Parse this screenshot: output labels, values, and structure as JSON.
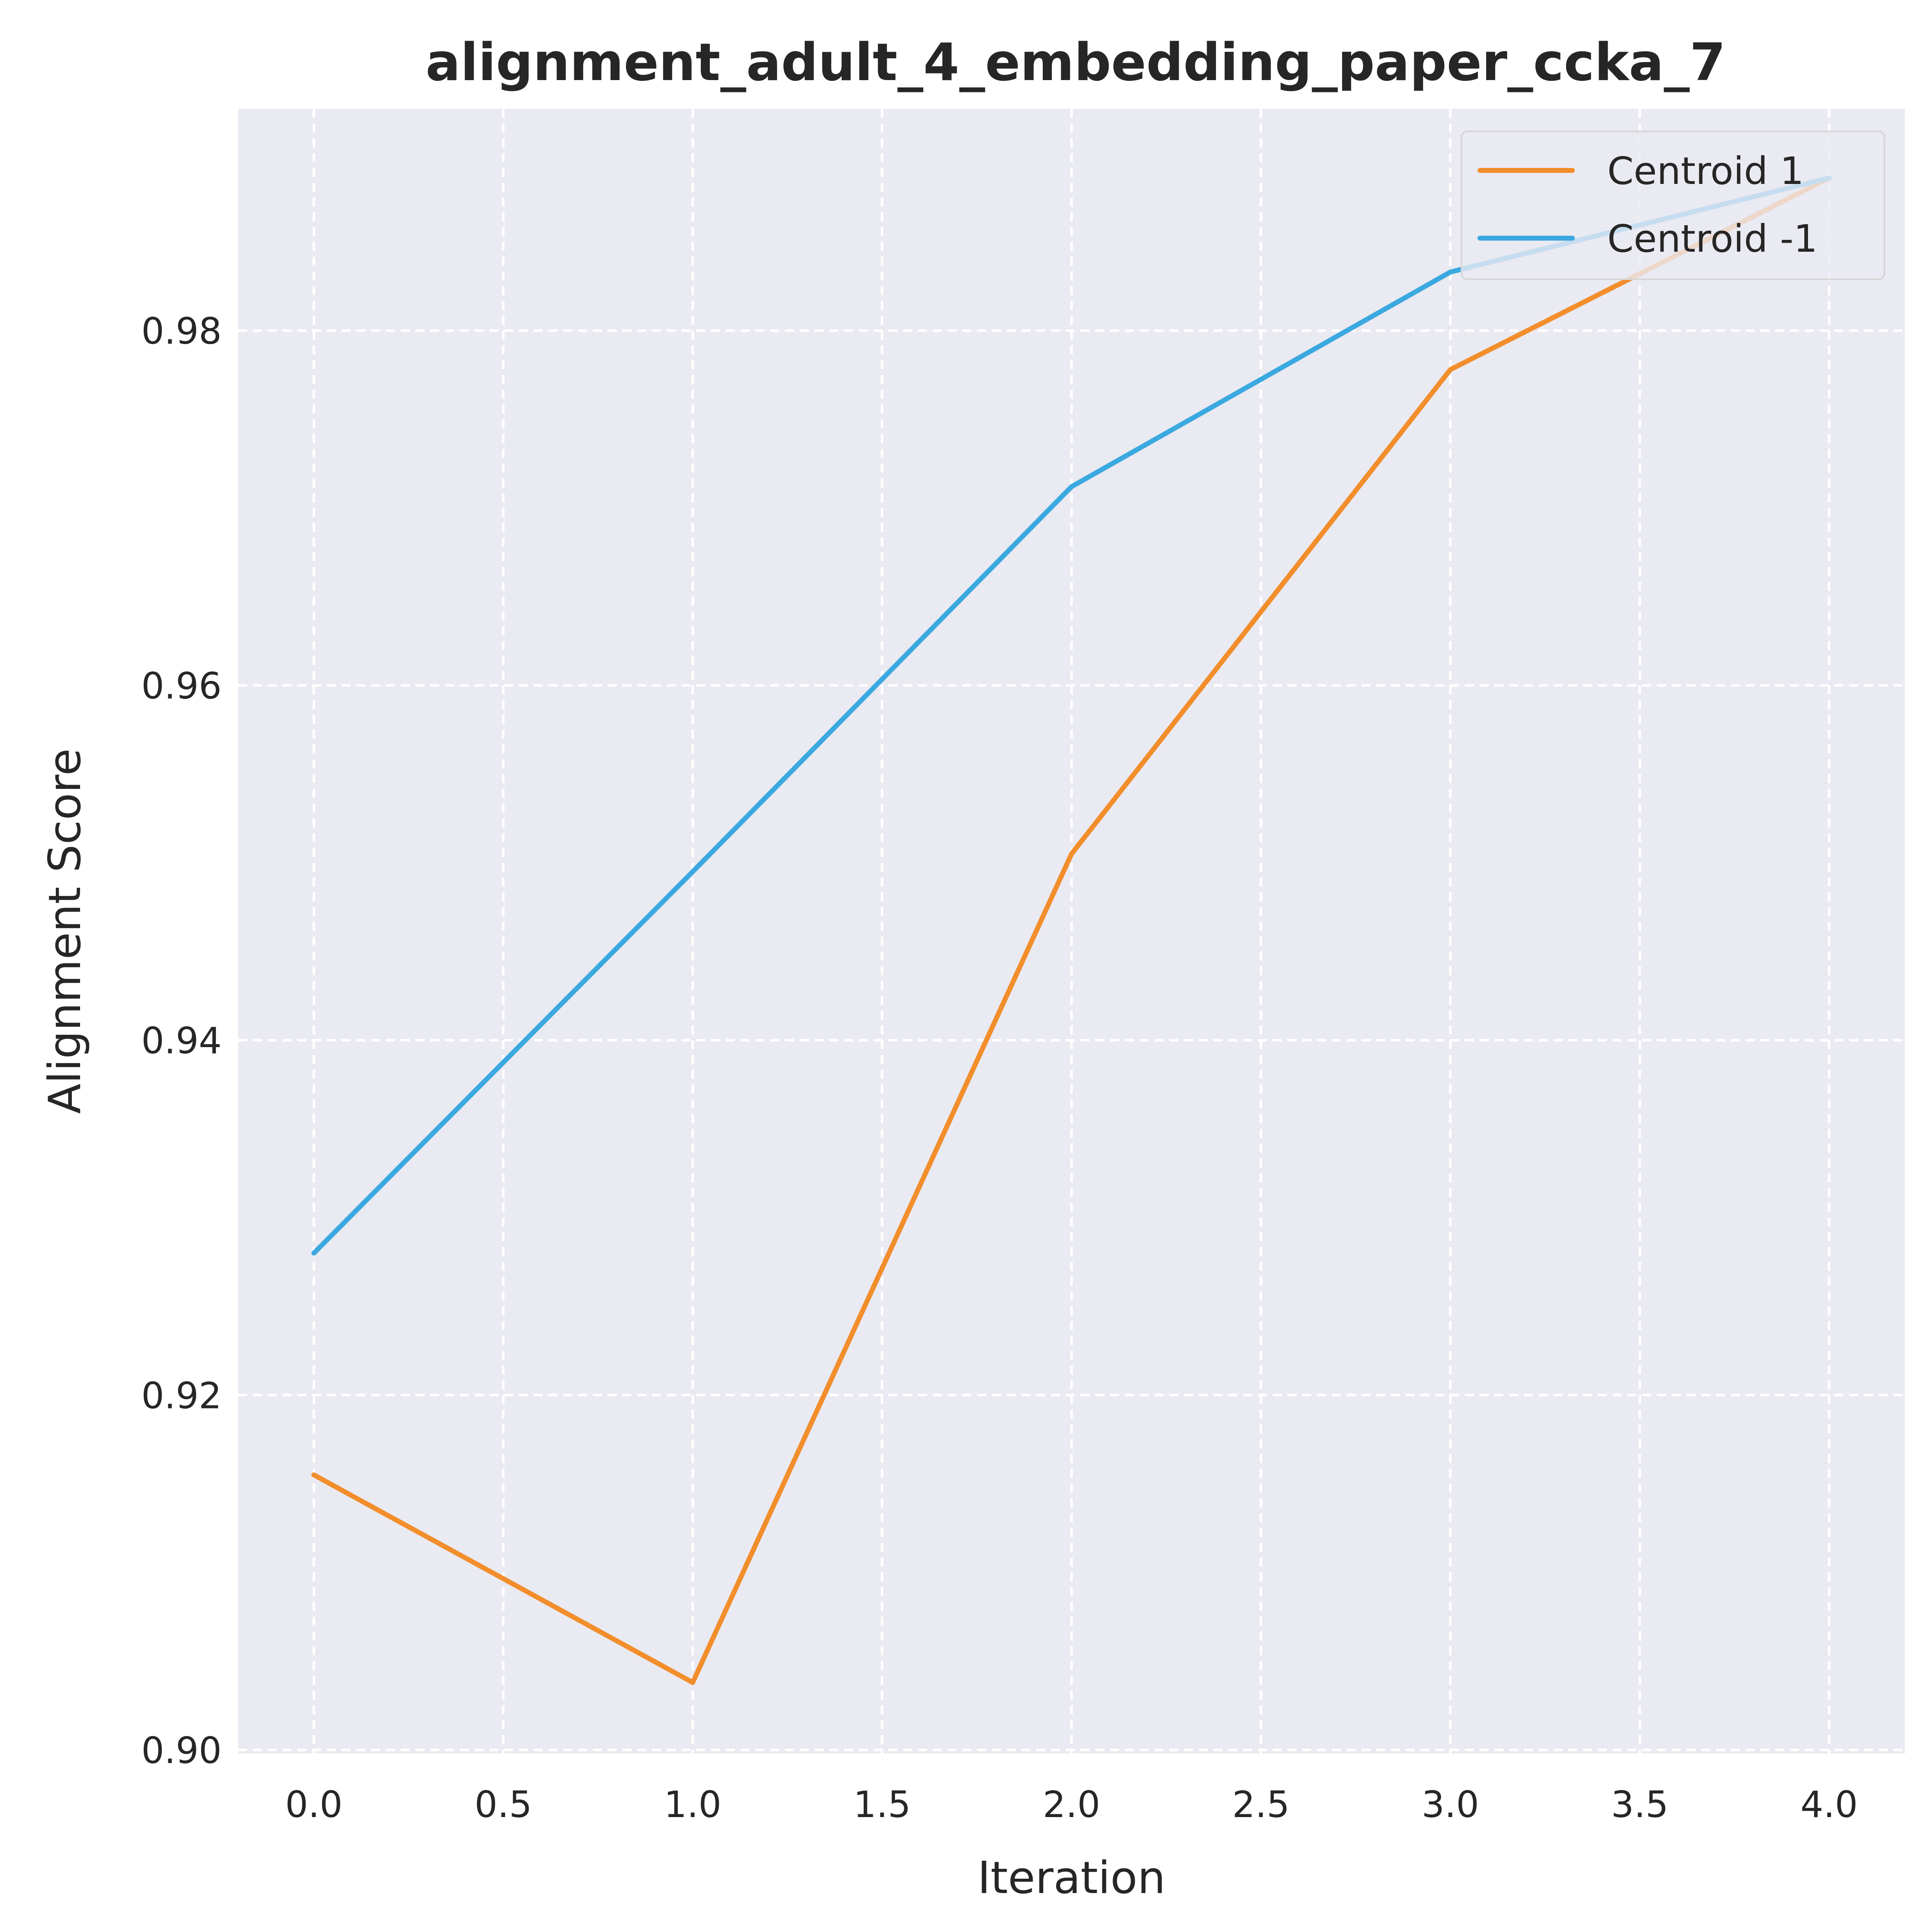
{
  "chart_data": {
    "type": "line",
    "title": "alignment_adult_4_embedding_paper_ccka_7",
    "xlabel": "Iteration",
    "ylabel": "Alignment Score",
    "x": [
      0,
      1,
      2,
      3,
      4
    ],
    "xlim": [
      -0.2,
      4.2
    ],
    "ylim": [
      0.8998,
      0.9925
    ],
    "xticks": [
      0.0,
      0.5,
      1.0,
      1.5,
      2.0,
      2.5,
      3.0,
      3.5,
      4.0
    ],
    "xtick_labels": [
      "0.0",
      "0.5",
      "1.0",
      "1.5",
      "2.0",
      "2.5",
      "3.0",
      "3.5",
      "4.0"
    ],
    "yticks": [
      0.9,
      0.92,
      0.94,
      0.96,
      0.98
    ],
    "ytick_labels": [
      "0.90",
      "0.92",
      "0.94",
      "0.96",
      "0.98"
    ],
    "grid": true,
    "legend_position": "top-right",
    "series": [
      {
        "name": "Centroid 1",
        "color": "#F28E2B",
        "values": [
          0.9155,
          0.9038,
          0.9505,
          0.9778,
          0.9886
        ]
      },
      {
        "name": "Centroid -1",
        "color": "#3BA9E0",
        "values": [
          0.928,
          0.9495,
          0.9712,
          0.9833,
          0.9886
        ]
      }
    ]
  }
}
